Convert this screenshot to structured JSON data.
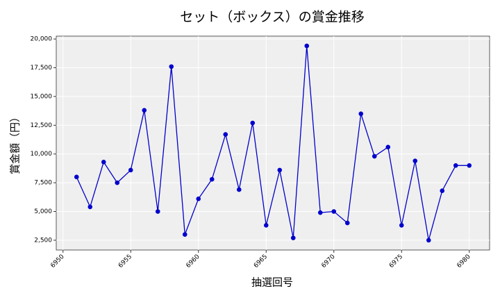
{
  "chart_data": {
    "type": "line",
    "title": "セット（ボックス）の賞金推移",
    "x_label": "抽選回号",
    "y_label": "賞金額（円）",
    "x": [
      6951,
      6952,
      6953,
      6954,
      6955,
      6956,
      6957,
      6958,
      6959,
      6960,
      6961,
      6962,
      6963,
      6964,
      6965,
      6966,
      6967,
      6968,
      6969,
      6970,
      6971,
      6972,
      6973,
      6974,
      6975,
      6976,
      6977,
      6978,
      6979,
      6980
    ],
    "values": [
      8000,
      5400,
      9300,
      7500,
      8600,
      13800,
      5000,
      17600,
      3000,
      6100,
      7800,
      11700,
      6900,
      12700,
      3800,
      8600,
      2700,
      19400,
      4900,
      5000,
      4000,
      13500,
      9800,
      10600,
      3800,
      9400,
      2500,
      6800,
      9000,
      9000
    ],
    "color": "#0000cc",
    "xlim": [
      6949.5,
      6981.5
    ],
    "xticks": [
      6950,
      6955,
      6960,
      6965,
      6970,
      6975,
      6980
    ],
    "ylim": [
      1650,
      20250
    ],
    "yticks": [
      {
        "value": 2500,
        "label": "2,500"
      },
      {
        "value": 5000,
        "label": "5,000"
      },
      {
        "value": 7500,
        "label": "7,500"
      },
      {
        "value": 10000,
        "label": "10,000"
      },
      {
        "value": 12500,
        "label": "12,500"
      },
      {
        "value": 15000,
        "label": "15,000"
      },
      {
        "value": 17500,
        "label": "17,500"
      },
      {
        "value": 20000,
        "label": "20,000"
      }
    ],
    "grid": true
  }
}
